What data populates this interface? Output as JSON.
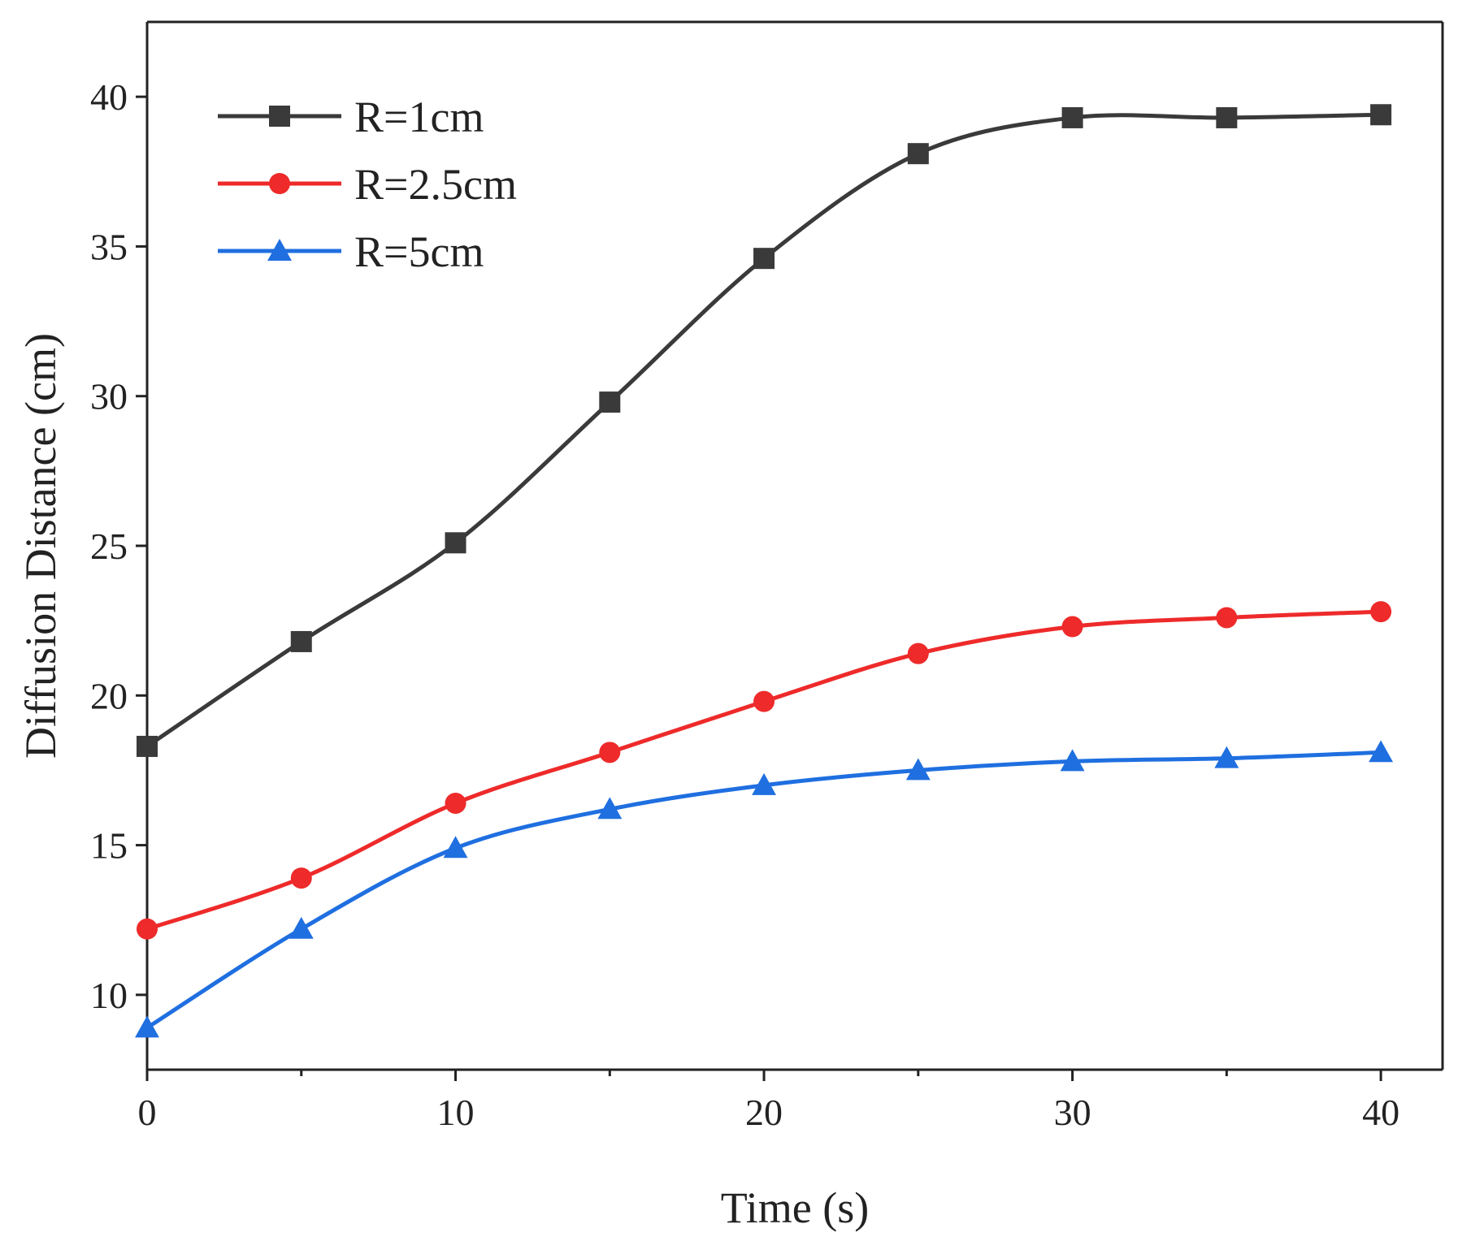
{
  "chart_data": {
    "type": "line",
    "title": "",
    "xlabel": "Time (s)",
    "ylabel": "Diffusion Distance (cm)",
    "xlim": [
      0,
      42
    ],
    "ylim": [
      7.5,
      42.5
    ],
    "xticks": [
      0,
      10,
      20,
      30,
      40
    ],
    "yticks": [
      10,
      15,
      20,
      25,
      30,
      35,
      40
    ],
    "xtick_labels": [
      "0",
      "10",
      "20",
      "30",
      "40"
    ],
    "ytick_labels": [
      "10",
      "15",
      "20",
      "25",
      "30",
      "35",
      "40"
    ],
    "grid": false,
    "legend_position": "top-left",
    "x": [
      0,
      5,
      10,
      15,
      20,
      25,
      30,
      35,
      40
    ],
    "series": [
      {
        "name": "R=1cm",
        "color": "#3a3a3a",
        "marker": "square",
        "values": [
          18.3,
          21.8,
          25.1,
          29.8,
          34.6,
          38.1,
          39.3,
          39.3,
          39.4
        ]
      },
      {
        "name": "R=2.5cm",
        "color": "#ee2a2a",
        "marker": "circle",
        "values": [
          12.2,
          13.9,
          16.4,
          18.1,
          19.8,
          21.4,
          22.3,
          22.6,
          22.8
        ]
      },
      {
        "name": "R=5cm",
        "color": "#1f6fe0",
        "marker": "triangle",
        "values": [
          8.9,
          12.2,
          14.9,
          16.2,
          17.0,
          17.5,
          17.8,
          17.9,
          18.1
        ]
      }
    ]
  }
}
